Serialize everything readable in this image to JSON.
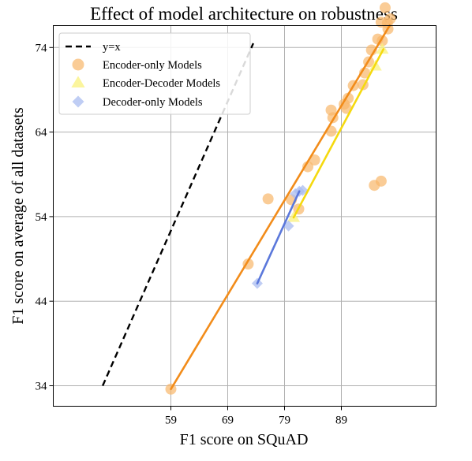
{
  "chart_data": {
    "type": "scatter",
    "title": "Effect of model architecture on robustness",
    "xlabel": "F1 score on SQuAD",
    "ylabel": "F1 score on average of all datasets",
    "x_ticks": [
      "59",
      "69",
      "79",
      "89"
    ],
    "y_ticks": [
      "34",
      "44",
      "54",
      "64",
      "74"
    ],
    "grid": true,
    "legend_placement": "top-left",
    "reference_line": {
      "name": "y=x",
      "color": "#000000",
      "style": "dashed",
      "points": [
        [
          47,
          34
        ],
        [
          73.5,
          74.5
        ]
      ]
    },
    "series": [
      {
        "name": "Encoder-only Models",
        "marker": "circle",
        "color": "#f8b66a",
        "line_color": "#f28c1a",
        "points": [
          [
            59,
            33.6
          ],
          [
            72.6,
            48.4
          ],
          [
            76.1,
            56.1
          ],
          [
            80.2,
            56.0
          ],
          [
            81.5,
            54.9
          ],
          [
            83.1,
            59.9
          ],
          [
            84.3,
            60.7
          ],
          [
            87.2,
            64.1
          ],
          [
            87.5,
            65.7
          ],
          [
            87.2,
            66.6
          ],
          [
            89.5,
            67.3
          ],
          [
            89.9,
            66.8
          ],
          [
            90.2,
            68.0
          ],
          [
            91.1,
            69.5
          ],
          [
            92.8,
            69.6
          ],
          [
            93.1,
            71.0
          ],
          [
            93.8,
            72.3
          ],
          [
            94.3,
            73.7
          ],
          [
            95.4,
            75.0
          ],
          [
            96.2,
            74.8
          ],
          [
            96.0,
            77.0
          ],
          [
            96.7,
            78.7
          ],
          [
            97.2,
            76.2
          ],
          [
            97.1,
            76.9
          ],
          [
            97.6,
            77.4
          ],
          [
            94.8,
            57.7
          ],
          [
            96.0,
            58.2
          ]
        ],
        "fit": [
          [
            59,
            33.6
          ],
          [
            97.5,
            76.6
          ]
        ]
      },
      {
        "name": "Encoder-Decoder Models",
        "marker": "triangle",
        "color": "#faf27c",
        "line_color": "#f5d90f",
        "points": [
          [
            80.6,
            53.9
          ],
          [
            95.0,
            71.8
          ],
          [
            96.2,
            73.8
          ]
        ],
        "fit": [
          [
            80.6,
            53.9
          ],
          [
            96.4,
            73.8
          ]
        ]
      },
      {
        "name": "Decoder-only Models",
        "marker": "diamond",
        "color": "#a9bcf0",
        "line_color": "#5b78db",
        "points": [
          [
            74.2,
            46.1
          ],
          [
            79.7,
            52.9
          ],
          [
            80.9,
            56.7
          ],
          [
            81.6,
            57.0
          ],
          [
            82.2,
            57.1
          ]
        ],
        "fit": [
          [
            74.2,
            46.1
          ],
          [
            81.6,
            57.0
          ]
        ]
      }
    ]
  }
}
